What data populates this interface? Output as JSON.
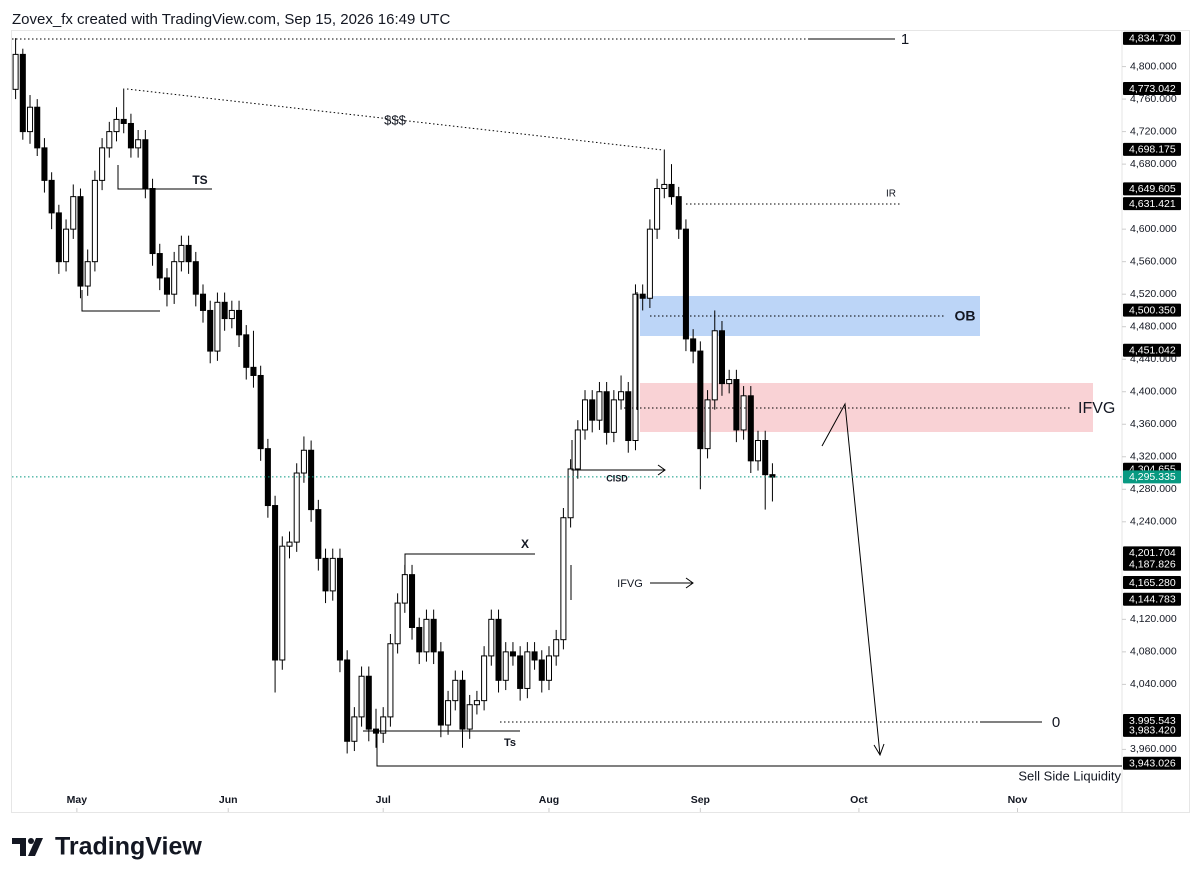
{
  "header": "Zovex_fx created with TradingView.com, Sep 15, 2026 16:49 UTC",
  "footer": {
    "logo": "TradingView"
  },
  "chart_data": {
    "type": "candlestick",
    "bull_color": "#ffffff",
    "bear_color": "#000000",
    "ylim": [
      3883,
      4845
    ],
    "xlim": [
      -0.5,
      153.5
    ],
    "yticks": [
      {
        "value": 4800,
        "label": "4,800.000"
      },
      {
        "value": 4760,
        "label": "4,760.000"
      },
      {
        "value": 4720,
        "label": "4,720.000"
      },
      {
        "value": 4680,
        "label": "4,680.000"
      },
      {
        "value": 4600,
        "label": "4,600.000"
      },
      {
        "value": 4560,
        "label": "4,560.000"
      },
      {
        "value": 4520,
        "label": "4,520.000"
      },
      {
        "value": 4480,
        "label": "4,480.000"
      },
      {
        "value": 4440,
        "label": "4,440.000"
      },
      {
        "value": 4400,
        "label": "4,400.000"
      },
      {
        "value": 4360,
        "label": "4,360.000"
      },
      {
        "value": 4320,
        "label": "4,320.000"
      },
      {
        "value": 4280,
        "label": "4,280.000"
      },
      {
        "value": 4240,
        "label": "4,240.000"
      },
      {
        "value": 4120,
        "label": "4,120.000"
      },
      {
        "value": 4080,
        "label": "4,080.000"
      },
      {
        "value": 4040,
        "label": "4,040.000"
      },
      {
        "value": 3960,
        "label": "3,960.000"
      }
    ],
    "xticks": [
      {
        "value": 8.5,
        "label": "May"
      },
      {
        "value": 29.5,
        "label": "Jun"
      },
      {
        "value": 51,
        "label": "Jul"
      },
      {
        "value": 74,
        "label": "Aug"
      },
      {
        "value": 95,
        "label": "Sep"
      },
      {
        "value": 117,
        "label": "Oct"
      },
      {
        "value": 139,
        "label": "Nov"
      }
    ],
    "price_labels": [
      {
        "value": 4834.73,
        "label": "4,834.730"
      },
      {
        "value": 4773.042,
        "label": "4,773.042"
      },
      {
        "value": 4698.175,
        "label": "4,698.175"
      },
      {
        "value": 4649.605,
        "label": "4,649.605"
      },
      {
        "value": 4631.421,
        "label": "4,631.421"
      },
      {
        "value": 4500.35,
        "label": "4,500.350"
      },
      {
        "value": 4451.042,
        "label": "4,451.042"
      },
      {
        "value": 4304.655,
        "label": "4,304.655"
      },
      {
        "value": 4201.704,
        "label": "4,201.704"
      },
      {
        "value": 4187.826,
        "label": "4,187.826"
      },
      {
        "value": 4165.28,
        "label": "4,165.280"
      },
      {
        "value": 4144.783,
        "label": "4,144.783"
      },
      {
        "value": 3995.543,
        "label": "3,995.543"
      },
      {
        "value": 3983.42,
        "label": "3,983.420"
      },
      {
        "value": 3943.026,
        "label": "3,943.026"
      }
    ],
    "last_price": {
      "value": 4295.335,
      "label": "4,295.335",
      "color": "#089981"
    },
    "annotations": [
      "$$$",
      "TS",
      "IR",
      "OB",
      "IFVG",
      "CISD",
      "X",
      "IFVG",
      "Ts",
      "1",
      "0",
      "Sell Side Liquidity"
    ],
    "candles": [
      [
        4772,
        4835,
        4760,
        4815
      ],
      [
        4815,
        4822,
        4710,
        4720
      ],
      [
        4720,
        4765,
        4705,
        4750
      ],
      [
        4750,
        4760,
        4690,
        4700
      ],
      [
        4700,
        4712,
        4645,
        4660
      ],
      [
        4660,
        4670,
        4600,
        4620
      ],
      [
        4620,
        4630,
        4545,
        4560
      ],
      [
        4560,
        4612,
        4548,
        4600
      ],
      [
        4600,
        4655,
        4588,
        4640
      ],
      [
        4640,
        4650,
        4515,
        4530
      ],
      [
        4530,
        4575,
        4518,
        4560
      ],
      [
        4560,
        4672,
        4548,
        4660
      ],
      [
        4660,
        4712,
        4648,
        4700
      ],
      [
        4700,
        4732,
        4688,
        4720
      ],
      [
        4720,
        4750,
        4708,
        4735
      ],
      [
        4735,
        4773,
        4718,
        4730
      ],
      [
        4730,
        4742,
        4688,
        4700
      ],
      [
        4700,
        4722,
        4688,
        4710
      ],
      [
        4710,
        4722,
        4638,
        4650
      ],
      [
        4650,
        4662,
        4555,
        4570
      ],
      [
        4570,
        4582,
        4525,
        4540
      ],
      [
        4540,
        4552,
        4505,
        4520
      ],
      [
        4520,
        4572,
        4508,
        4560
      ],
      [
        4560,
        4592,
        4548,
        4580
      ],
      [
        4580,
        4592,
        4545,
        4560
      ],
      [
        4560,
        4572,
        4505,
        4520
      ],
      [
        4520,
        4532,
        4485,
        4500
      ],
      [
        4500,
        4512,
        4435,
        4450
      ],
      [
        4450,
        4522,
        4438,
        4510
      ],
      [
        4510,
        4522,
        4475,
        4490
      ],
      [
        4490,
        4512,
        4478,
        4500
      ],
      [
        4500,
        4512,
        4455,
        4470
      ],
      [
        4470,
        4482,
        4415,
        4430
      ],
      [
        4430,
        4475,
        4405,
        4420
      ],
      [
        4420,
        4432,
        4315,
        4330
      ],
      [
        4330,
        4342,
        4245,
        4260
      ],
      [
        4260,
        4272,
        4030,
        4070
      ],
      [
        4070,
        4222,
        4058,
        4210
      ],
      [
        4210,
        4228,
        4195,
        4215
      ],
      [
        4215,
        4312,
        4203,
        4300
      ],
      [
        4300,
        4345,
        4288,
        4328
      ],
      [
        4328,
        4340,
        4240,
        4255
      ],
      [
        4255,
        4267,
        4180,
        4195
      ],
      [
        4195,
        4207,
        4140,
        4155
      ],
      [
        4155,
        4207,
        4143,
        4195
      ],
      [
        4195,
        4207,
        4055,
        4070
      ],
      [
        4070,
        4082,
        3955,
        3970
      ],
      [
        3970,
        4012,
        3958,
        4000
      ],
      [
        4000,
        4062,
        3988,
        4050
      ],
      [
        4050,
        4062,
        3970,
        3985
      ],
      [
        3985,
        4010,
        3962,
        3980
      ],
      [
        3980,
        4012,
        3968,
        4000
      ],
      [
        4000,
        4102,
        3988,
        4090
      ],
      [
        4090,
        4152,
        4078,
        4140
      ],
      [
        4140,
        4187,
        4128,
        4175
      ],
      [
        4175,
        4187,
        4095,
        4110
      ],
      [
        4110,
        4122,
        4065,
        4080
      ],
      [
        4080,
        4132,
        4068,
        4120
      ],
      [
        4120,
        4132,
        4065,
        4080
      ],
      [
        4080,
        4092,
        3975,
        3990
      ],
      [
        3990,
        4032,
        3978,
        4020
      ],
      [
        4020,
        4057,
        4008,
        4045
      ],
      [
        4045,
        4057,
        3962,
        3985
      ],
      [
        3985,
        4027,
        3973,
        4015
      ],
      [
        4015,
        4032,
        4003,
        4020
      ],
      [
        4020,
        4087,
        4008,
        4075
      ],
      [
        4075,
        4132,
        4063,
        4120
      ],
      [
        4120,
        4132,
        4030,
        4045
      ],
      [
        4045,
        4092,
        4033,
        4080
      ],
      [
        4080,
        4092,
        4063,
        4075
      ],
      [
        4075,
        4087,
        4020,
        4035
      ],
      [
        4035,
        4092,
        4023,
        4080
      ],
      [
        4080,
        4092,
        4058,
        4070
      ],
      [
        4070,
        4082,
        4030,
        4045
      ],
      [
        4045,
        4087,
        4033,
        4075
      ],
      [
        4075,
        4107,
        4063,
        4095
      ],
      [
        4095,
        4257,
        4083,
        4245
      ],
      [
        4245,
        4317,
        4233,
        4305
      ],
      [
        4305,
        4365,
        4293,
        4353
      ],
      [
        4353,
        4402,
        4341,
        4390
      ],
      [
        4390,
        4402,
        4350,
        4365
      ],
      [
        4365,
        4412,
        4353,
        4400
      ],
      [
        4400,
        4412,
        4335,
        4350
      ],
      [
        4350,
        4402,
        4338,
        4390
      ],
      [
        4390,
        4420,
        4378,
        4400
      ],
      [
        4400,
        4412,
        4325,
        4340
      ],
      [
        4340,
        4532,
        4328,
        4520
      ],
      [
        4520,
        4532,
        4500,
        4515
      ],
      [
        4515,
        4612,
        4503,
        4600
      ],
      [
        4600,
        4662,
        4588,
        4650
      ],
      [
        4650,
        4698,
        4638,
        4655
      ],
      [
        4655,
        4680,
        4630,
        4640
      ],
      [
        4640,
        4652,
        4588,
        4600
      ],
      [
        4600,
        4612,
        4450,
        4465
      ],
      [
        4465,
        4477,
        4435,
        4450
      ],
      [
        4450,
        4462,
        4280,
        4330
      ],
      [
        4330,
        4402,
        4318,
        4390
      ],
      [
        4390,
        4500,
        4378,
        4475
      ],
      [
        4475,
        4487,
        4395,
        4410
      ],
      [
        4410,
        4427,
        4398,
        4415
      ],
      [
        4415,
        4427,
        4338,
        4353
      ],
      [
        4353,
        4407,
        4341,
        4395
      ],
      [
        4395,
        4407,
        4300,
        4315
      ],
      [
        4315,
        4352,
        4303,
        4340
      ],
      [
        4340,
        4352,
        4255,
        4298
      ],
      [
        4298,
        4312,
        4265,
        4295
      ]
    ]
  }
}
